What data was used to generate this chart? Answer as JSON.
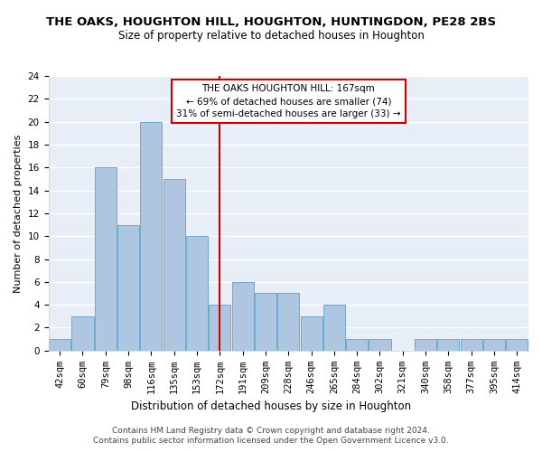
{
  "title1": "THE OAKS, HOUGHTON HILL, HOUGHTON, HUNTINGDON, PE28 2BS",
  "title2": "Size of property relative to detached houses in Houghton",
  "xlabel": "Distribution of detached houses by size in Houghton",
  "ylabel": "Number of detached properties",
  "categories": [
    "42sqm",
    "60sqm",
    "79sqm",
    "98sqm",
    "116sqm",
    "135sqm",
    "153sqm",
    "172sqm",
    "191sqm",
    "209sqm",
    "228sqm",
    "246sqm",
    "265sqm",
    "284sqm",
    "302sqm",
    "321sqm",
    "340sqm",
    "358sqm",
    "377sqm",
    "395sqm",
    "414sqm"
  ],
  "values": [
    1,
    3,
    16,
    11,
    20,
    15,
    10,
    4,
    6,
    5,
    5,
    3,
    4,
    1,
    1,
    0,
    1,
    1,
    1,
    1,
    1
  ],
  "bar_color": "#aec6e0",
  "bar_edge_color": "#6aaad4",
  "reference_label": "THE OAKS HOUGHTON HILL: 167sqm",
  "annotation_line1": "← 69% of detached houses are smaller (74)",
  "annotation_line2": "31% of semi-detached houses are larger (33) →",
  "annotation_box_color": "#ffffff",
  "annotation_box_edge_color": "#cc0000",
  "ref_line_color": "#cc0000",
  "ylim": [
    0,
    24
  ],
  "yticks": [
    0,
    2,
    4,
    6,
    8,
    10,
    12,
    14,
    16,
    18,
    20,
    22,
    24
  ],
  "footer1": "Contains HM Land Registry data © Crown copyright and database right 2024.",
  "footer2": "Contains public sector information licensed under the Open Government Licence v3.0.",
  "bg_color": "#e8eef8",
  "grid_color": "#ffffff",
  "title1_fontsize": 9.5,
  "title2_fontsize": 8.5,
  "xlabel_fontsize": 8.5,
  "ylabel_fontsize": 8,
  "tick_fontsize": 7.5,
  "footer_fontsize": 6.5,
  "annotation_fontsize": 7.5
}
